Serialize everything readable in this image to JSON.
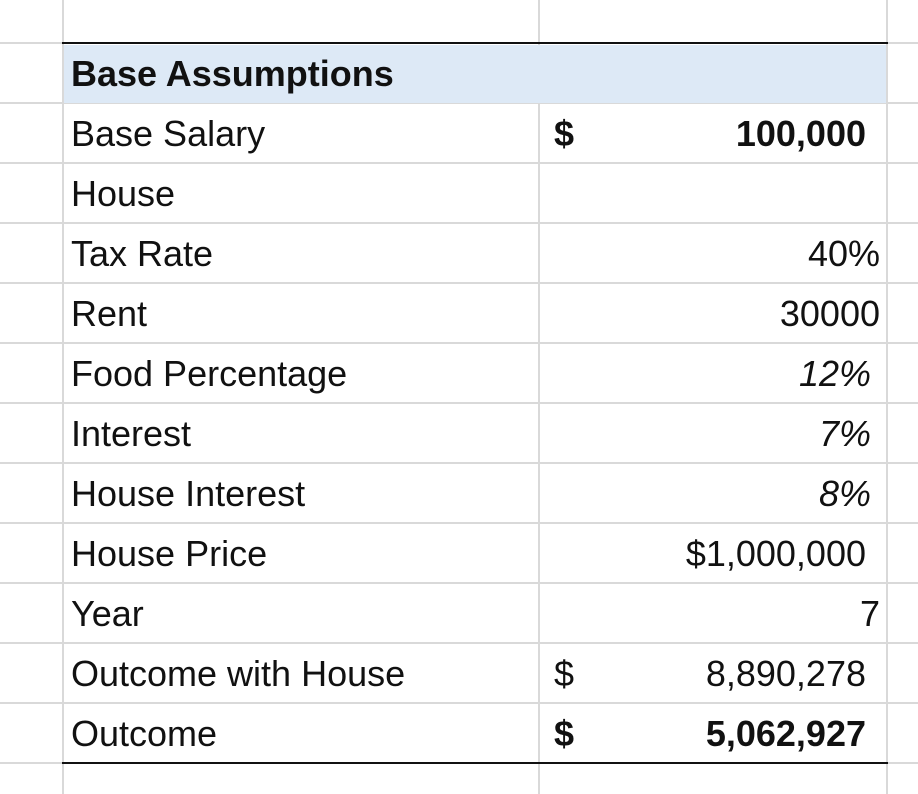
{
  "title": "Base Assumptions",
  "rows": [
    {
      "label": "Base Salary",
      "dollar": "$",
      "value": "100,000",
      "bold_value": true,
      "italic": false
    },
    {
      "label": "House",
      "dollar": "",
      "value": "",
      "bold_value": false,
      "italic": false
    },
    {
      "label": "Tax Rate",
      "dollar": "",
      "value": "40%",
      "bold_value": false,
      "italic": false
    },
    {
      "label": "Rent",
      "dollar": "",
      "value": "30000",
      "bold_value": false,
      "italic": false
    },
    {
      "label": "Food Percentage",
      "dollar": "",
      "value": "12%",
      "bold_value": false,
      "italic": true
    },
    {
      "label": "Interest",
      "dollar": "",
      "value": "7%",
      "bold_value": false,
      "italic": true
    },
    {
      "label": "House Interest",
      "dollar": "",
      "value": "8%",
      "bold_value": false,
      "italic": true
    },
    {
      "label": "House Price",
      "dollar": "",
      "value": "$1,000,000",
      "bold_value": false,
      "italic": false
    },
    {
      "label": "Year",
      "dollar": "",
      "value": "7",
      "bold_value": false,
      "italic": false
    },
    {
      "label": "Outcome with House",
      "dollar": "$",
      "value": "8,890,278",
      "bold_value": false,
      "italic": false
    },
    {
      "label": "Outcome",
      "dollar": "$",
      "value": "5,062,927",
      "bold_value": true,
      "italic": false
    }
  ],
  "colors": {
    "header_fill": "#dde9f6",
    "gridline": "#d9d9d9",
    "border": "#111111",
    "text": "#111111"
  }
}
